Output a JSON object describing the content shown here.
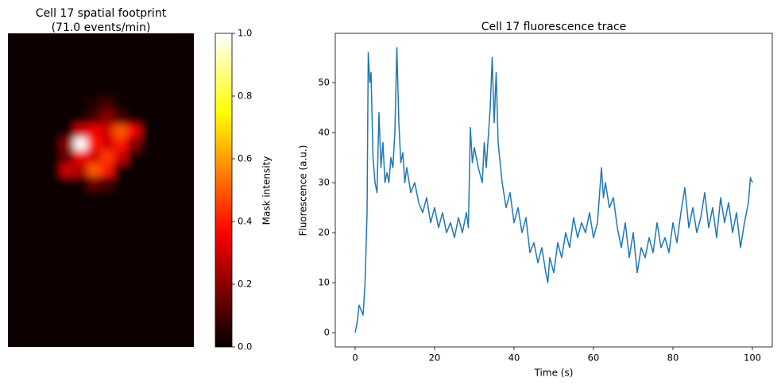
{
  "chart_data": [
    {
      "type": "heatmap",
      "title": [
        "Cell 17 spatial footprint",
        "(71.0 events/min)"
      ],
      "colormap": "hot",
      "z": [
        [
          0,
          0,
          0,
          0,
          0,
          0,
          0,
          0,
          0,
          0,
          0,
          0,
          0,
          0
        ],
        [
          0,
          0,
          0,
          0,
          0,
          0,
          0,
          0,
          0,
          0,
          0,
          0,
          0,
          0
        ],
        [
          0,
          0,
          0,
          0,
          0,
          0,
          0,
          0,
          0,
          0,
          0,
          0,
          0,
          0
        ],
        [
          0,
          0,
          0,
          0,
          0,
          0,
          0,
          0,
          0,
          0,
          0,
          0,
          0,
          0
        ],
        [
          0,
          0,
          0,
          0,
          0,
          0,
          0,
          0,
          0,
          0,
          0,
          0,
          0,
          0
        ],
        [
          0,
          0,
          0,
          0,
          0,
          0,
          0.05,
          0.1,
          0,
          0,
          0,
          0,
          0,
          0
        ],
        [
          0,
          0,
          0,
          0,
          0,
          0,
          0.1,
          0.2,
          0.1,
          0,
          0,
          0,
          0,
          0
        ],
        [
          0,
          0,
          0,
          0,
          0,
          0.3,
          0.35,
          0.3,
          0.5,
          0.35,
          0,
          0,
          0,
          0
        ],
        [
          0,
          0,
          0,
          0,
          0.2,
          1.0,
          0.4,
          0.3,
          0.4,
          0.2,
          0,
          0,
          0,
          0
        ],
        [
          0,
          0,
          0,
          0,
          0.15,
          0.35,
          0.3,
          0.45,
          0.3,
          0,
          0,
          0,
          0,
          0
        ],
        [
          0,
          0,
          0,
          0,
          0.3,
          0.25,
          0.5,
          0.4,
          0,
          0,
          0,
          0,
          0,
          0
        ],
        [
          0,
          0,
          0,
          0,
          0,
          0,
          0.15,
          0.1,
          0,
          0,
          0,
          0,
          0,
          0
        ],
        [
          0,
          0,
          0,
          0,
          0,
          0,
          0,
          0,
          0,
          0,
          0,
          0,
          0,
          0
        ],
        [
          0,
          0,
          0,
          0,
          0,
          0,
          0,
          0,
          0,
          0,
          0,
          0,
          0,
          0
        ],
        [
          0,
          0,
          0,
          0,
          0,
          0,
          0,
          0,
          0,
          0,
          0,
          0,
          0,
          0
        ],
        [
          0,
          0,
          0,
          0,
          0,
          0,
          0,
          0,
          0,
          0,
          0,
          0,
          0,
          0
        ],
        [
          0,
          0,
          0,
          0,
          0,
          0,
          0,
          0,
          0,
          0,
          0,
          0,
          0,
          0
        ],
        [
          0,
          0,
          0,
          0,
          0,
          0,
          0,
          0,
          0,
          0,
          0,
          0,
          0,
          0
        ],
        [
          0,
          0,
          0,
          0,
          0,
          0,
          0,
          0,
          0,
          0,
          0,
          0,
          0,
          0
        ],
        [
          0,
          0,
          0,
          0,
          0,
          0,
          0,
          0,
          0,
          0,
          0,
          0,
          0,
          0
        ],
        [
          0,
          0,
          0,
          0,
          0,
          0,
          0,
          0,
          0,
          0,
          0,
          0,
          0,
          0
        ],
        [
          0,
          0,
          0,
          0,
          0,
          0,
          0,
          0,
          0,
          0,
          0,
          0,
          0,
          0
        ],
        [
          0,
          0,
          0,
          0,
          0,
          0,
          0,
          0,
          0,
          0,
          0,
          0,
          0,
          0
        ],
        [
          0,
          0,
          0,
          0,
          0,
          0,
          0,
          0,
          0,
          0,
          0,
          0,
          0,
          0
        ]
      ],
      "colorbar": {
        "label": "Mask intensity",
        "lim": [
          0,
          1
        ],
        "ticks": [
          {
            "value": 0,
            "label": "0.0"
          },
          {
            "value": 0.2,
            "label": "0.2"
          },
          {
            "value": 0.4,
            "label": "0.4"
          },
          {
            "value": 0.6,
            "label": "0.6"
          },
          {
            "value": 0.8,
            "label": "0.8"
          },
          {
            "value": 1,
            "label": "1.0"
          }
        ]
      }
    },
    {
      "type": "line",
      "title": "Cell 17 fluorescence trace",
      "xlabel": "Time (s)",
      "ylabel": "Fluorescence (a.u.)",
      "color": "#1f77b4",
      "x": [
        0,
        0.5,
        1,
        1.5,
        2,
        2.5,
        3,
        3.3,
        3.7,
        4,
        4.5,
        5,
        5.5,
        6,
        6.5,
        7,
        7.5,
        8,
        8.5,
        9,
        9.5,
        10,
        10.5,
        11,
        11.5,
        12,
        12.5,
        13,
        14,
        15,
        16,
        17,
        18,
        19,
        20,
        21,
        22,
        23,
        24,
        25,
        26,
        27,
        28,
        28.5,
        29,
        29.5,
        30,
        31,
        32,
        32.5,
        33,
        34,
        34.5,
        35,
        35.5,
        36,
        37,
        38,
        39,
        40,
        41,
        42,
        43,
        44,
        45,
        46,
        47,
        48,
        48.5,
        49,
        50,
        51,
        52,
        53,
        54,
        55,
        56,
        57,
        58,
        59,
        60,
        61,
        62,
        62.5,
        63,
        64,
        65,
        66,
        67,
        68,
        69,
        70,
        71,
        72,
        73,
        74,
        75,
        76,
        77,
        78,
        79,
        80,
        81,
        82,
        83,
        84,
        85,
        86,
        87,
        88,
        89,
        90,
        91,
        92,
        93,
        94,
        95,
        96,
        97,
        98,
        99,
        99.5,
        100
      ],
      "values": [
        0,
        2,
        5.5,
        4.5,
        3.5,
        10,
        24,
        56,
        50,
        52,
        35,
        30,
        28,
        44,
        33,
        38,
        30,
        32,
        30,
        35,
        33,
        40,
        57,
        42,
        34,
        36,
        30,
        33,
        28,
        30,
        26,
        24,
        27,
        22,
        25,
        21,
        24,
        20,
        22,
        19,
        23,
        20,
        24,
        21,
        41,
        34,
        37,
        33,
        30,
        38,
        33,
        45,
        55,
        42,
        52,
        38,
        30,
        25,
        28,
        22,
        25,
        20,
        23,
        16,
        18,
        14,
        17,
        12,
        10,
        15,
        12,
        18,
        15,
        20,
        17,
        23,
        19,
        22,
        20,
        24,
        19,
        22,
        33,
        27,
        30,
        25,
        27,
        21,
        17,
        22,
        15,
        20,
        12,
        17,
        15,
        19,
        16,
        22,
        17,
        19,
        16,
        22,
        18,
        24,
        29,
        21,
        25,
        20,
        23,
        28,
        21,
        25,
        19,
        27,
        22,
        26,
        20,
        24,
        17,
        22,
        26,
        31,
        30
      ],
      "xlim": [
        -5,
        105
      ],
      "ylim": [
        -2.85,
        59.85
      ],
      "xticks": [
        0,
        20,
        40,
        60,
        80,
        100
      ],
      "yticks": [
        0,
        10,
        20,
        30,
        40,
        50
      ]
    }
  ]
}
